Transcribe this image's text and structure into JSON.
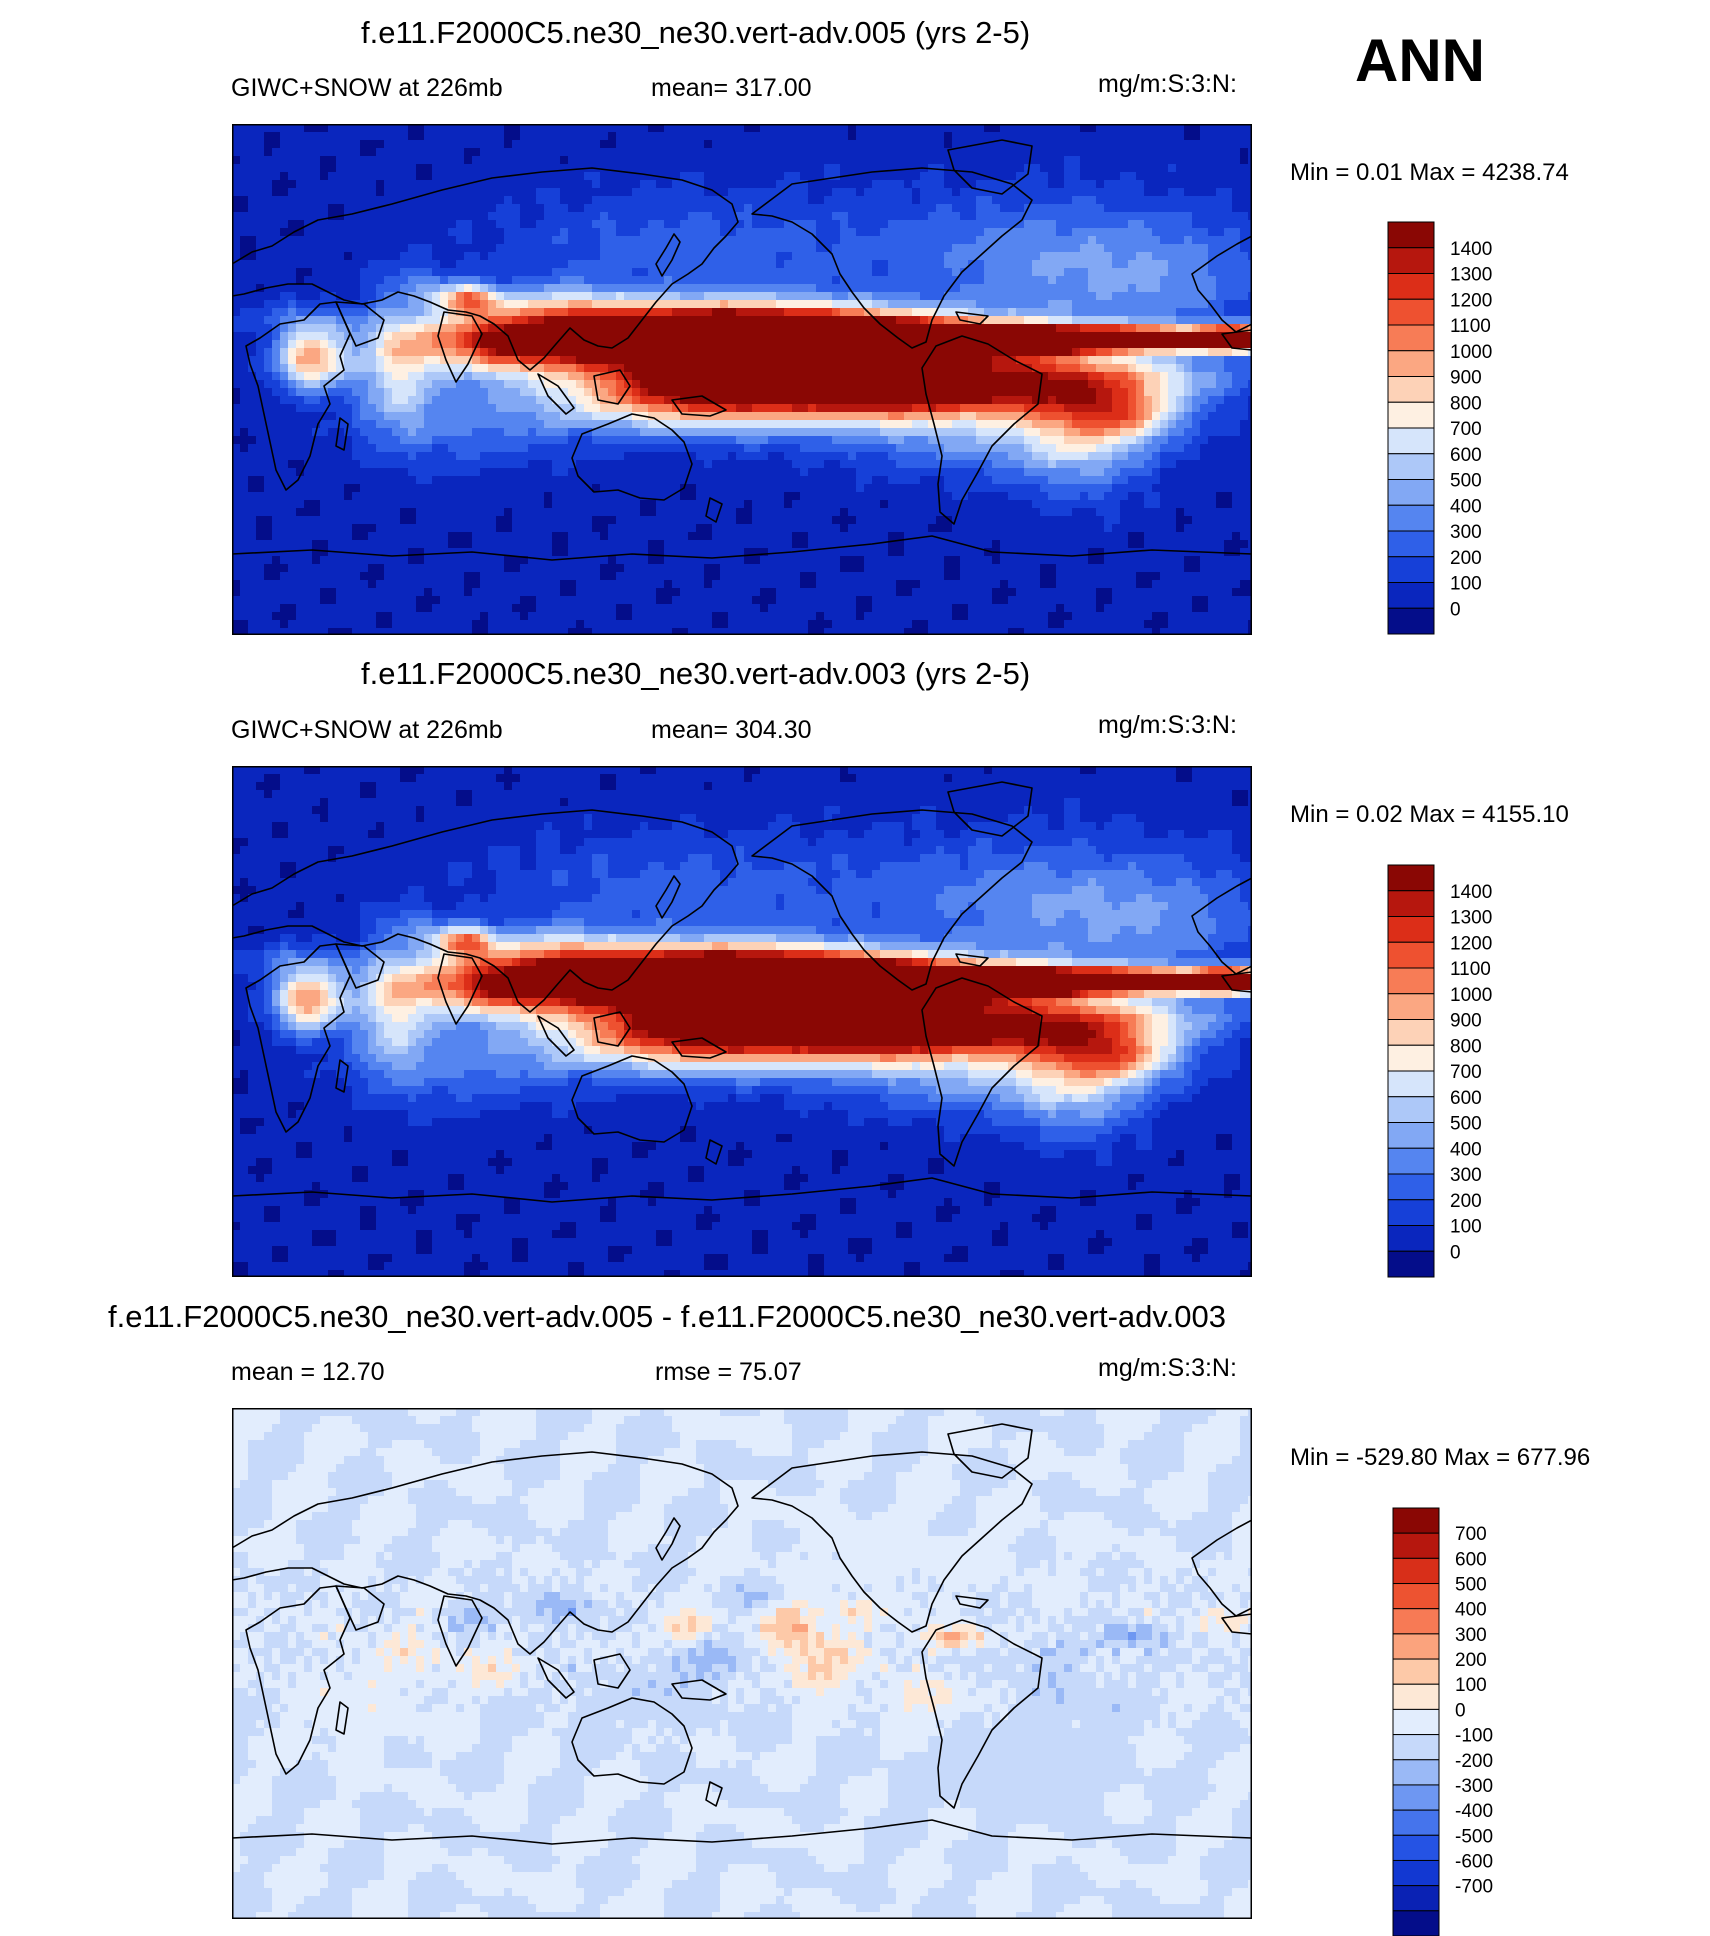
{
  "season_label": "ANN",
  "colors": {
    "seq": [
      "#040d8a",
      "#0a26be",
      "#1640d8",
      "#2f60e8",
      "#5585f0",
      "#82a8f4",
      "#adc8f8",
      "#d6e5fb",
      "#fef0e2",
      "#fdd2b7",
      "#fba782",
      "#f77c56",
      "#ee5130",
      "#dc2e18",
      "#b6170e",
      "#8a0704"
    ],
    "div": [
      "#040d8a",
      "#0a22b4",
      "#1238d2",
      "#2553e4",
      "#4574ec",
      "#6e97f2",
      "#9ab9f6",
      "#c6d9fa",
      "#e2edfd",
      "#fde8d6",
      "#fdc9a8",
      "#fba37d",
      "#f77a55",
      "#ed5331",
      "#d82f19",
      "#b6170e",
      "#8a0704"
    ]
  },
  "panels": [
    {
      "title": "f.e11.F2000C5.ne30_ne30.vert-adv.005 (yrs 2-5)",
      "left_label": "GIWC+SNOW at 226mb",
      "center_label": "mean= 317.00",
      "right_label": "mg/m:S:3:N:",
      "minmax": "Min =   0.01 Max = 4238.74",
      "field": "abs",
      "colorbar_labels": [
        "1400",
        "1300",
        "1200",
        "1100",
        "1000",
        "900",
        "800",
        "700",
        "600",
        "500",
        "400",
        "300",
        "200",
        "100",
        "0"
      ]
    },
    {
      "title": "f.e11.F2000C5.ne30_ne30.vert-adv.003 (yrs 2-5)",
      "left_label": "GIWC+SNOW at 226mb",
      "center_label": "mean= 304.30",
      "right_label": "mg/m:S:3:N:",
      "minmax": "Min =   0.02 Max = 4155.10",
      "field": "abs",
      "colorbar_labels": [
        "1400",
        "1300",
        "1200",
        "1100",
        "1000",
        "900",
        "800",
        "700",
        "600",
        "500",
        "400",
        "300",
        "200",
        "100",
        "0"
      ]
    },
    {
      "title": "f.e11.F2000C5.ne30_ne30.vert-adv.005 - f.e11.F2000C5.ne30_ne30.vert-adv.003",
      "left_label": "mean =  12.70",
      "center_label": "rmse =  75.07",
      "right_label": "mg/m:S:3:N:",
      "minmax": "Min = -529.80 Max = 677.96",
      "field": "diff",
      "colorbar_labels": [
        "700",
        "600",
        "500",
        "400",
        "300",
        "200",
        "100",
        "0",
        "-100",
        "-200",
        "-300",
        "-400",
        "-500",
        "-600",
        "-700"
      ]
    }
  ]
}
